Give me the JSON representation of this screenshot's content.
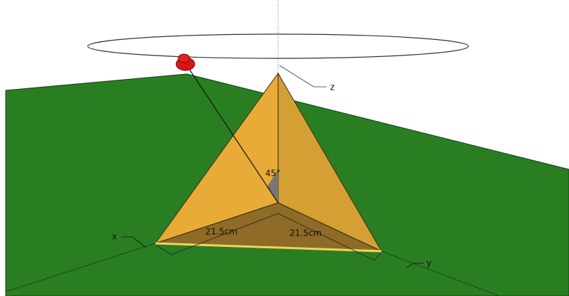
{
  "scene": {
    "axes": {
      "z": "z",
      "x": "x",
      "y": "y"
    },
    "angle_label": "45°",
    "dimensions": [
      "21.5cm",
      "21.5cm"
    ]
  }
}
